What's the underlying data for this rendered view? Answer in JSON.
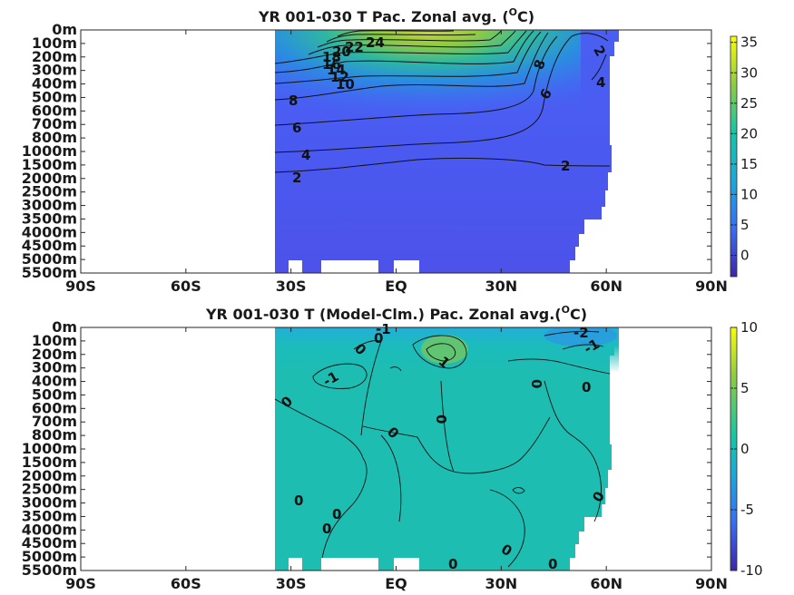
{
  "chart_data": [
    {
      "type": "heatmap",
      "title": "YR 001-030 T Pac. Zonal avg. (",
      "title_super": "O",
      "title_end": "C)",
      "x_ticks": [
        "90S",
        "60S",
        "30S",
        "EQ",
        "30N",
        "60N",
        "90N"
      ],
      "y_ticks": [
        "0m",
        "100m",
        "200m",
        "300m",
        "400m",
        "500m",
        "600m",
        "700m",
        "800m",
        "1000m",
        "1500m",
        "2000m",
        "2500m",
        "3000m",
        "3500m",
        "4000m",
        "4500m",
        "5000m",
        "5500m"
      ],
      "x_range": [
        -90,
        90
      ],
      "data_extent_lat": [
        -35,
        62
      ],
      "colorbar": {
        "range": [
          -3.5,
          36
        ],
        "ticks": [
          "0",
          "5",
          "10",
          "15",
          "20",
          "25",
          "30",
          "35"
        ],
        "tick_values": [
          0,
          5,
          10,
          15,
          20,
          25,
          30,
          35
        ]
      },
      "contour_labels": [
        "24",
        "22",
        "20",
        "18",
        "16",
        "14",
        "12",
        "10",
        "8",
        "6",
        "4",
        "2",
        "2",
        "2",
        "4",
        "6",
        "8"
      ]
    },
    {
      "type": "heatmap",
      "title": "YR 001-030 T (Model-Clm.) Pac. Zonal avg.(",
      "title_super": "O",
      "title_end": "C)",
      "x_ticks": [
        "90S",
        "60S",
        "30S",
        "EQ",
        "30N",
        "60N",
        "90N"
      ],
      "y_ticks": [
        "0m",
        "100m",
        "200m",
        "300m",
        "400m",
        "500m",
        "600m",
        "700m",
        "800m",
        "1000m",
        "1500m",
        "2000m",
        "2500m",
        "3000m",
        "3500m",
        "4000m",
        "4500m",
        "5000m",
        "5500m"
      ],
      "x_range": [
        -90,
        90
      ],
      "data_extent_lat": [
        -35,
        62
      ],
      "colorbar": {
        "range": [
          -10,
          10
        ],
        "ticks": [
          "10",
          "5",
          "0",
          "-5",
          "-10"
        ],
        "tick_values": [
          10,
          5,
          0,
          -5,
          -10
        ]
      },
      "contour_labels": [
        "-1",
        "0",
        "0",
        "1",
        "-1",
        "0",
        "0",
        "0",
        "0",
        "0",
        "0",
        "0",
        "0",
        "0",
        "0",
        "0",
        "-2",
        "-1",
        "0"
      ]
    }
  ]
}
